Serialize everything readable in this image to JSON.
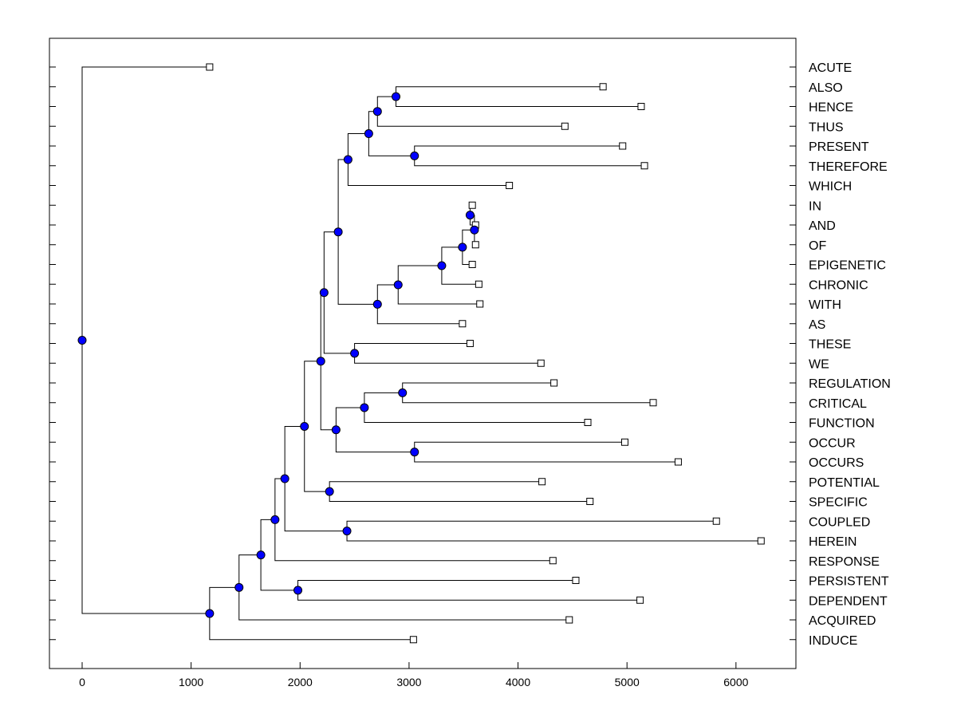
{
  "chart_data": {
    "type": "dendrogram",
    "title": "",
    "xlabel": "",
    "ylabel": "",
    "xlim": [
      -300,
      6550
    ],
    "x_ticks": [
      0,
      1000,
      2000,
      3000,
      4000,
      5000,
      6000
    ],
    "x_tick_labels": [
      "0",
      "1000",
      "2000",
      "3000",
      "4000",
      "5000",
      "6000"
    ],
    "colors": {
      "internal_node": "#0000ff",
      "leaf_marker_fill": "#ffffff",
      "line": "#000000"
    },
    "leaves": [
      {
        "label": "ACUTE",
        "value": 1170
      },
      {
        "label": "ALSO",
        "value": 4780
      },
      {
        "label": "HENCE",
        "value": 5130
      },
      {
        "label": "THUS",
        "value": 4430
      },
      {
        "label": "PRESENT",
        "value": 4960
      },
      {
        "label": "THEREFORE",
        "value": 5160
      },
      {
        "label": "WHICH",
        "value": 3920
      },
      {
        "label": "IN",
        "value": 3580
      },
      {
        "label": "AND",
        "value": 3610
      },
      {
        "label": "OF",
        "value": 3610
      },
      {
        "label": "EPIGENETIC",
        "value": 3580
      },
      {
        "label": "CHRONIC",
        "value": 3640
      },
      {
        "label": "WITH",
        "value": 3650
      },
      {
        "label": "AS",
        "value": 3490
      },
      {
        "label": "THESE",
        "value": 3560
      },
      {
        "label": "WE",
        "value": 4210
      },
      {
        "label": "REGULATION",
        "value": 4330
      },
      {
        "label": "CRITICAL",
        "value": 5240
      },
      {
        "label": "FUNCTION",
        "value": 4640
      },
      {
        "label": "OCCUR",
        "value": 4980
      },
      {
        "label": "OCCURS",
        "value": 5470
      },
      {
        "label": "POTENTIAL",
        "value": 4220
      },
      {
        "label": "SPECIFIC",
        "value": 4660
      },
      {
        "label": "COUPLED",
        "value": 5820
      },
      {
        "label": "HEREIN",
        "value": 6230
      },
      {
        "label": "RESPONSE",
        "value": 4320
      },
      {
        "label": "PERSISTENT",
        "value": 4530
      },
      {
        "label": "DEPENDENT",
        "value": 5120
      },
      {
        "label": "ACQUIRED",
        "value": 4470
      },
      {
        "label": "INDUCE",
        "value": 3040
      }
    ],
    "merges": [
      {
        "id": "n1",
        "value": 3560,
        "children": [
          "IN",
          "AND"
        ]
      },
      {
        "id": "n2",
        "value": 3600,
        "children": [
          "n1",
          "OF"
        ]
      },
      {
        "id": "n3",
        "value": 3490,
        "children": [
          "n2",
          "EPIGENETIC"
        ]
      },
      {
        "id": "n4",
        "value": 3300,
        "children": [
          "n3",
          "CHRONIC"
        ]
      },
      {
        "id": "n5",
        "value": 2900,
        "children": [
          "n4",
          "WITH"
        ]
      },
      {
        "id": "n6",
        "value": 2710,
        "children": [
          "n5",
          "AS"
        ]
      },
      {
        "id": "n7",
        "value": 2880,
        "children": [
          "ALSO",
          "HENCE"
        ]
      },
      {
        "id": "n8",
        "value": 2710,
        "children": [
          "n7",
          "THUS"
        ]
      },
      {
        "id": "n9",
        "value": 3050,
        "children": [
          "PRESENT",
          "THEREFORE"
        ]
      },
      {
        "id": "n10",
        "value": 2630,
        "children": [
          "n8",
          "n9"
        ]
      },
      {
        "id": "n11",
        "value": 2440,
        "children": [
          "n10",
          "WHICH"
        ]
      },
      {
        "id": "n12",
        "value": 2350,
        "children": [
          "n11",
          "n6"
        ]
      },
      {
        "id": "n13",
        "value": 2500,
        "children": [
          "THESE",
          "WE"
        ]
      },
      {
        "id": "n14",
        "value": 2220,
        "children": [
          "n12",
          "n13"
        ]
      },
      {
        "id": "n15",
        "value": 2940,
        "children": [
          "REGULATION",
          "CRITICAL"
        ]
      },
      {
        "id": "n16",
        "value": 2590,
        "children": [
          "n15",
          "FUNCTION"
        ]
      },
      {
        "id": "n17",
        "value": 3050,
        "children": [
          "OCCUR",
          "OCCURS"
        ]
      },
      {
        "id": "n18",
        "value": 2330,
        "children": [
          "n16",
          "n17"
        ]
      },
      {
        "id": "n19",
        "value": 2190,
        "children": [
          "n14",
          "n18"
        ]
      },
      {
        "id": "n20",
        "value": 2270,
        "children": [
          "POTENTIAL",
          "SPECIFIC"
        ]
      },
      {
        "id": "n21",
        "value": 2040,
        "children": [
          "n19",
          "n20"
        ]
      },
      {
        "id": "n22",
        "value": 2430,
        "children": [
          "COUPLED",
          "HEREIN"
        ]
      },
      {
        "id": "n23",
        "value": 1860,
        "children": [
          "n21",
          "n22"
        ]
      },
      {
        "id": "n24",
        "value": 1770,
        "children": [
          "n23",
          "RESPONSE"
        ]
      },
      {
        "id": "n25",
        "value": 1980,
        "children": [
          "PERSISTENT",
          "DEPENDENT"
        ]
      },
      {
        "id": "n26",
        "value": 1640,
        "children": [
          "n24",
          "n25"
        ]
      },
      {
        "id": "n27",
        "value": 1440,
        "children": [
          "n26",
          "ACQUIRED"
        ]
      },
      {
        "id": "n28",
        "value": 1170,
        "children": [
          "n27",
          "INDUCE"
        ]
      },
      {
        "id": "root",
        "value": 0,
        "children": [
          "ACUTE",
          "n28"
        ]
      }
    ]
  }
}
